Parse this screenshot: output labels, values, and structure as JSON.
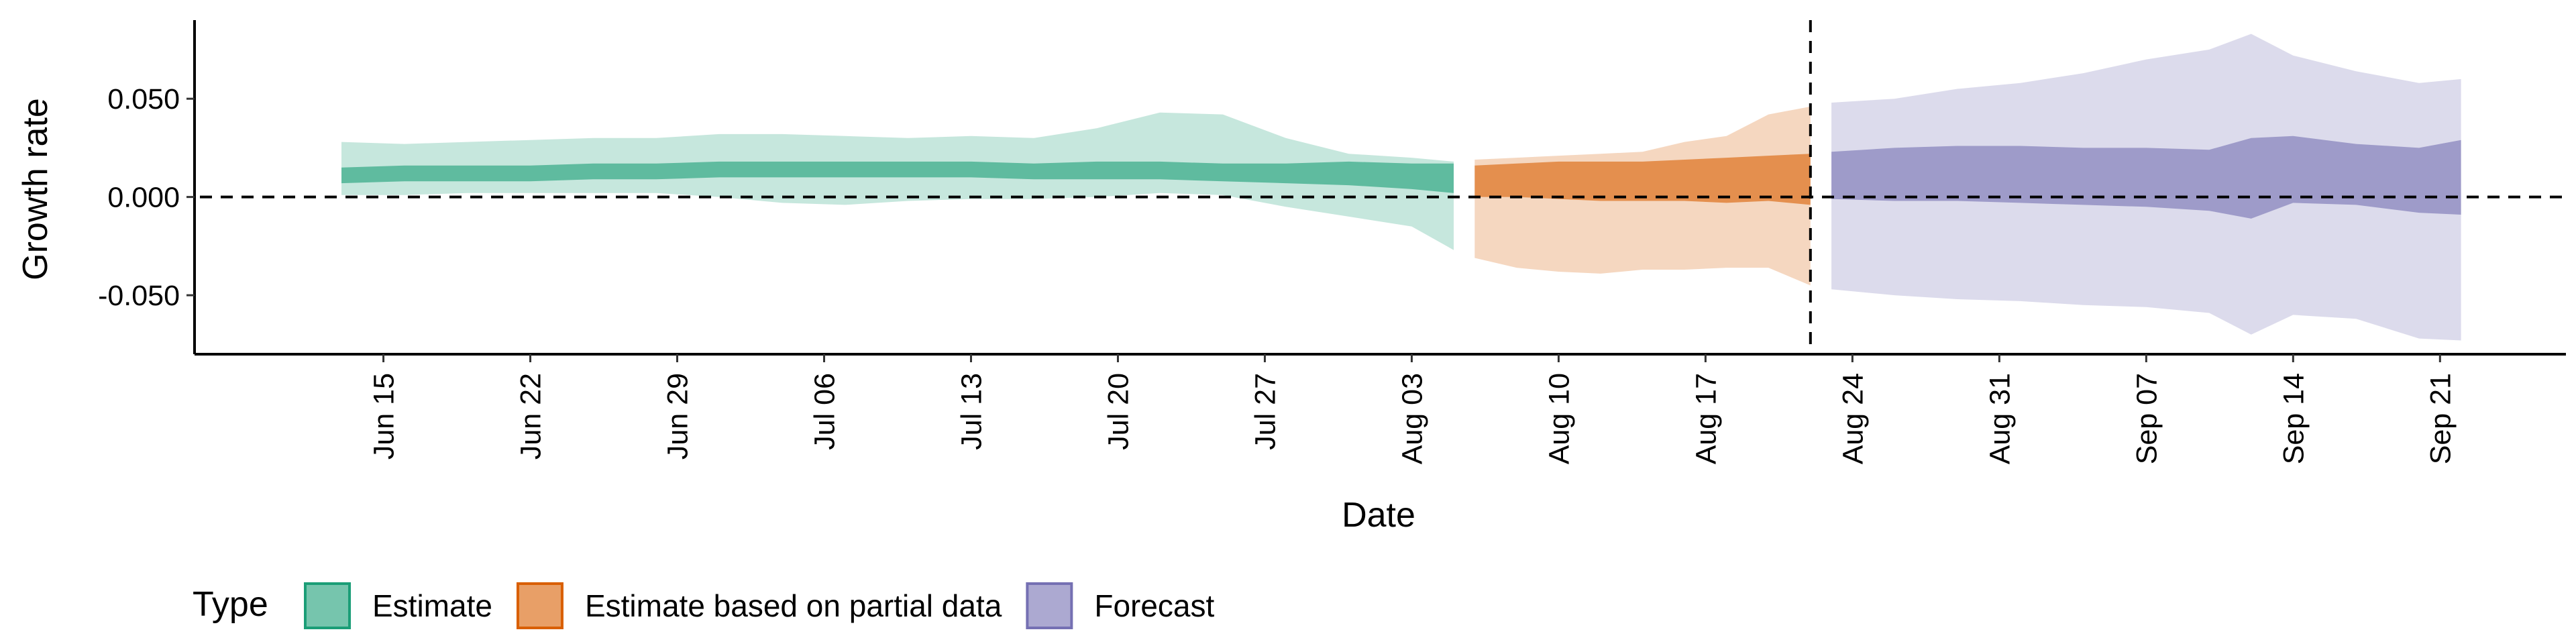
{
  "chart_data": {
    "type": "area",
    "xlabel": "Date",
    "ylabel": "Growth rate",
    "ylim": [
      -0.08,
      0.09
    ],
    "y_ticks": [
      -0.05,
      0,
      0.05
    ],
    "y_tick_labels": [
      "-0.050",
      "0.000",
      "0.050"
    ],
    "x_range": [
      "2020-06-06",
      "2020-09-27"
    ],
    "x_ticks": [
      "2020-06-15",
      "2020-06-22",
      "2020-06-29",
      "2020-07-06",
      "2020-07-13",
      "2020-07-20",
      "2020-07-27",
      "2020-08-03",
      "2020-08-10",
      "2020-08-17",
      "2020-08-24",
      "2020-08-31",
      "2020-09-07",
      "2020-09-14",
      "2020-09-21"
    ],
    "x_tick_labels": [
      "Jun 15",
      "Jun 22",
      "Jun 29",
      "Jul 06",
      "Jul 13",
      "Jul 20",
      "Jul 27",
      "Aug 03",
      "Aug 10",
      "Aug 17",
      "Aug 24",
      "Aug 31",
      "Sep 07",
      "Sep 14",
      "Sep 21"
    ],
    "reference_lines": {
      "horizontal_y": 0,
      "vertical_date": "2020-08-22",
      "style": "dashed"
    },
    "legend": {
      "title": "Type",
      "placement": "bottom",
      "entries": [
        {
          "label": "Estimate",
          "color": "#1b9e77"
        },
        {
          "label": "Estimate based on partial data",
          "color": "#d95f02"
        },
        {
          "label": "Forecast",
          "color": "#7570b3"
        }
      ]
    },
    "series": [
      {
        "name": "Estimate",
        "color": "#1b9e77",
        "x": [
          "2020-06-13",
          "2020-06-16",
          "2020-06-19",
          "2020-06-22",
          "2020-06-25",
          "2020-06-28",
          "2020-07-01",
          "2020-07-04",
          "2020-07-07",
          "2020-07-10",
          "2020-07-13",
          "2020-07-16",
          "2020-07-19",
          "2020-07-22",
          "2020-07-25",
          "2020-07-28",
          "2020-07-31",
          "2020-08-03",
          "2020-08-05"
        ],
        "upper90": [
          0.028,
          0.027,
          0.028,
          0.029,
          0.03,
          0.03,
          0.032,
          0.032,
          0.031,
          0.03,
          0.031,
          0.03,
          0.035,
          0.043,
          0.042,
          0.03,
          0.022,
          0.02,
          0.018
        ],
        "lower90": [
          0.001,
          0.001,
          0.002,
          0.002,
          0.002,
          0.002,
          0.0,
          -0.003,
          -0.004,
          -0.002,
          -0.001,
          -0.001,
          0.0,
          0.002,
          0.001,
          -0.005,
          -0.01,
          -0.015,
          -0.027
        ],
        "upper50": [
          0.015,
          0.016,
          0.016,
          0.016,
          0.017,
          0.017,
          0.018,
          0.018,
          0.018,
          0.018,
          0.018,
          0.017,
          0.018,
          0.018,
          0.017,
          0.017,
          0.018,
          0.017,
          0.017
        ],
        "lower50": [
          0.007,
          0.008,
          0.008,
          0.008,
          0.009,
          0.009,
          0.01,
          0.01,
          0.01,
          0.01,
          0.01,
          0.009,
          0.009,
          0.009,
          0.008,
          0.007,
          0.006,
          0.004,
          0.002
        ]
      },
      {
        "name": "Estimate based on partial data",
        "color": "#d95f02",
        "x": [
          "2020-08-06",
          "2020-08-08",
          "2020-08-10",
          "2020-08-12",
          "2020-08-14",
          "2020-08-16",
          "2020-08-18",
          "2020-08-20",
          "2020-08-22"
        ],
        "upper90": [
          0.019,
          0.02,
          0.021,
          0.022,
          0.023,
          0.028,
          0.031,
          0.042,
          0.046
        ],
        "lower90": [
          -0.031,
          -0.036,
          -0.038,
          -0.039,
          -0.037,
          -0.037,
          -0.036,
          -0.036,
          -0.045
        ],
        "upper50": [
          0.016,
          0.017,
          0.018,
          0.018,
          0.018,
          0.019,
          0.02,
          0.021,
          0.022
        ],
        "lower50": [
          0.0,
          0.0,
          -0.001,
          -0.002,
          -0.002,
          -0.002,
          -0.003,
          -0.002,
          -0.004
        ]
      },
      {
        "name": "Forecast",
        "color": "#7570b3",
        "x": [
          "2020-08-23",
          "2020-08-26",
          "2020-08-29",
          "2020-09-01",
          "2020-09-04",
          "2020-09-07",
          "2020-09-10",
          "2020-09-12",
          "2020-09-14",
          "2020-09-17",
          "2020-09-20",
          "2020-09-22"
        ],
        "upper90": [
          0.048,
          0.05,
          0.055,
          0.058,
          0.063,
          0.07,
          0.075,
          0.083,
          0.072,
          0.064,
          0.058,
          0.06
        ],
        "lower90": [
          -0.047,
          -0.05,
          -0.052,
          -0.053,
          -0.055,
          -0.056,
          -0.059,
          -0.07,
          -0.06,
          -0.062,
          -0.072,
          -0.073
        ],
        "upper50": [
          0.023,
          0.025,
          0.026,
          0.026,
          0.025,
          0.025,
          0.024,
          0.03,
          0.031,
          0.027,
          0.025,
          0.029
        ],
        "lower50": [
          -0.001,
          -0.002,
          -0.002,
          -0.003,
          -0.004,
          -0.005,
          -0.007,
          -0.011,
          -0.003,
          -0.004,
          -0.008,
          -0.009
        ]
      }
    ]
  }
}
